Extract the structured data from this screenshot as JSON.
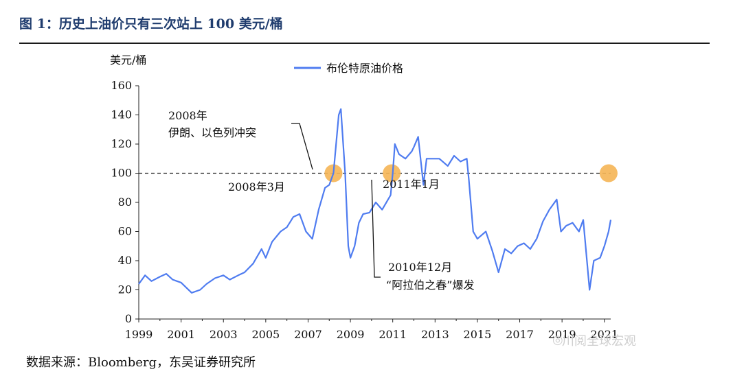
{
  "figure": {
    "title": "图 1：历史上油价只有三次站上 100 美元/桶",
    "source": "数据来源：Bloomberg，东吴证券研究所",
    "watermark": "川阅全球宏观"
  },
  "colors": {
    "series": "#4f7cf0",
    "marker": "#f5b555",
    "title": "#1f3c6e"
  },
  "icons": {
    "watermark": "wechat-icon"
  },
  "chart_data": {
    "type": "line",
    "xlabel": "",
    "ylabel": "美元/桶",
    "ylim": [
      0,
      160
    ],
    "xlim": [
      1999,
      2021.3
    ],
    "yticks": [
      0,
      20,
      40,
      60,
      80,
      100,
      120,
      140,
      160
    ],
    "xticks": [
      "1999",
      "2001",
      "2003",
      "2005",
      "2007",
      "2009",
      "2011",
      "2013",
      "2015",
      "2017",
      "2019",
      "2021"
    ],
    "legend": {
      "position": "top-center",
      "entries": [
        "布伦特原油价格"
      ]
    },
    "reference_line": {
      "y": 100,
      "style": "dashed"
    },
    "series": [
      {
        "name": "布伦特原油价格",
        "x": [
          1999.0,
          1999.3,
          1999.6,
          2000.0,
          2000.3,
          2000.6,
          2001.0,
          2001.5,
          2001.9,
          2002.2,
          2002.6,
          2003.0,
          2003.3,
          2003.7,
          2004.0,
          2004.4,
          2004.8,
          2005.0,
          2005.3,
          2005.7,
          2006.0,
          2006.3,
          2006.6,
          2006.9,
          2007.2,
          2007.5,
          2007.8,
          2008.0,
          2008.2,
          2008.45,
          2008.55,
          2008.75,
          2008.9,
          2009.0,
          2009.2,
          2009.4,
          2009.6,
          2009.9,
          2010.2,
          2010.5,
          2010.9,
          2011.0,
          2011.1,
          2011.3,
          2011.6,
          2011.9,
          2012.0,
          2012.2,
          2012.45,
          2012.6,
          2012.9,
          2013.2,
          2013.6,
          2013.9,
          2014.2,
          2014.5,
          2014.6,
          2014.8,
          2015.0,
          2015.4,
          2015.7,
          2016.0,
          2016.3,
          2016.6,
          2016.9,
          2017.2,
          2017.5,
          2017.8,
          2018.1,
          2018.4,
          2018.75,
          2018.95,
          2019.2,
          2019.5,
          2019.8,
          2020.0,
          2020.3,
          2020.5,
          2020.8,
          2021.0,
          2021.2,
          2021.3
        ],
        "values": [
          24,
          30,
          26,
          29,
          31,
          27,
          25,
          18,
          20,
          24,
          28,
          30,
          27,
          30,
          32,
          38,
          48,
          42,
          53,
          60,
          63,
          70,
          72,
          60,
          55,
          75,
          90,
          92,
          100,
          140,
          144,
          100,
          50,
          42,
          50,
          66,
          72,
          73,
          80,
          75,
          85,
          100,
          120,
          113,
          110,
          115,
          118,
          125,
          92,
          110,
          110,
          110,
          105,
          112,
          108,
          110,
          95,
          60,
          55,
          60,
          47,
          32,
          48,
          45,
          50,
          52,
          48,
          55,
          67,
          75,
          82,
          60,
          64,
          66,
          60,
          68,
          20,
          40,
          42,
          50,
          60,
          68
        ],
        "note_values": []
      }
    ],
    "annotations": [
      {
        "id": "a1",
        "lines": [
          "2008年",
          "伊朗、以色列冲突"
        ]
      },
      {
        "id": "a2",
        "lines": [
          "2008年3月"
        ]
      },
      {
        "id": "a3",
        "lines": [
          "2011年1月"
        ]
      },
      {
        "id": "a4",
        "lines": [
          "2010年12月",
          "“阿拉伯之春”爆发"
        ]
      }
    ],
    "markers": [
      {
        "x": 2008.2,
        "y": 100,
        "label": "2008年3月"
      },
      {
        "x": 2010.95,
        "y": 100,
        "label": "2011年1月"
      },
      {
        "x": 2021.2,
        "y": 100,
        "label": ""
      }
    ]
  }
}
